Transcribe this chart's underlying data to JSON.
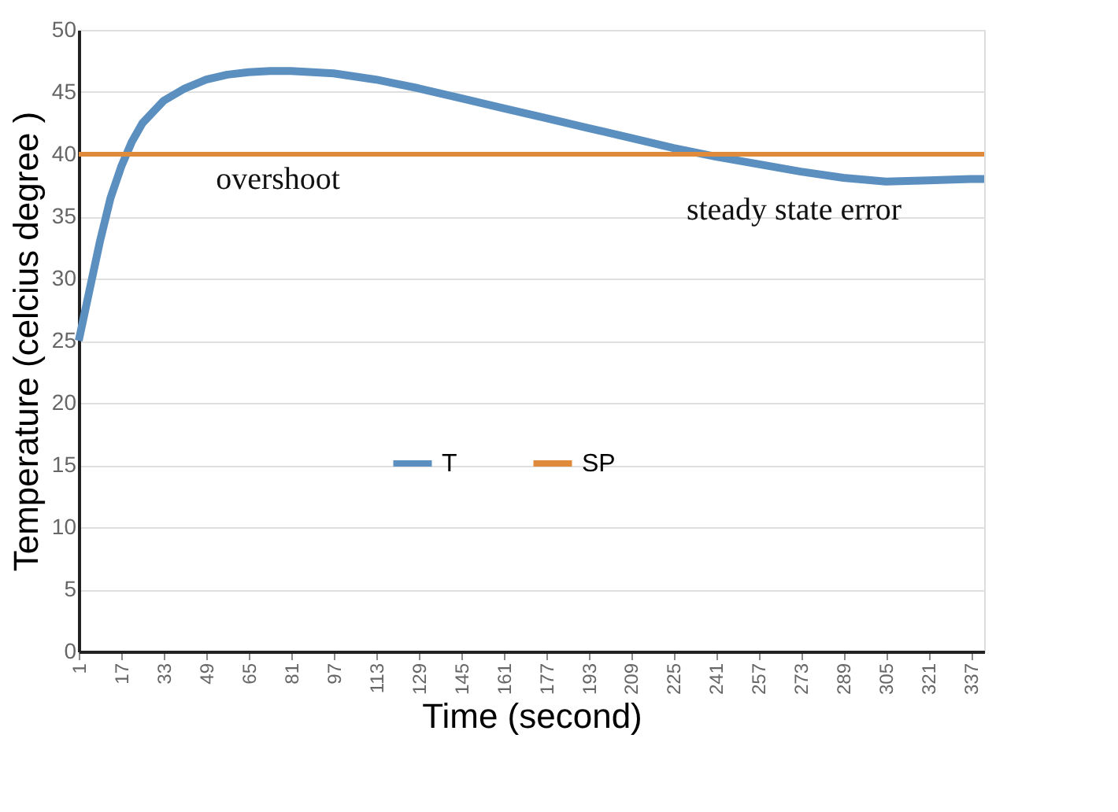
{
  "chart_data": {
    "type": "line",
    "xlabel": "Time (second)",
    "ylabel": "Temperature (celcius degree )",
    "xlim": [
      1,
      342
    ],
    "xticks": [
      1,
      17,
      33,
      49,
      65,
      81,
      97,
      113,
      129,
      145,
      161,
      177,
      193,
      209,
      225,
      241,
      257,
      273,
      289,
      305,
      321,
      337
    ],
    "ylim": [
      0,
      50
    ],
    "yticks": [
      0,
      5,
      10,
      15,
      20,
      25,
      30,
      35,
      40,
      45,
      50
    ],
    "grid": "y",
    "legend": "bottom",
    "marker": "none",
    "line_style": "solid",
    "series": [
      {
        "name": "T",
        "color": "#5b8fc0",
        "x": [
          1,
          5,
          9,
          13,
          17,
          21,
          25,
          33,
          41,
          49,
          57,
          65,
          73,
          81,
          97,
          113,
          129,
          145,
          161,
          177,
          193,
          209,
          225,
          241,
          257,
          273,
          289,
          305,
          321,
          337,
          342
        ],
        "values": [
          25,
          29,
          33,
          36.5,
          39,
          41,
          42.5,
          44.3,
          45.3,
          46,
          46.4,
          46.6,
          46.7,
          46.7,
          46.5,
          46,
          45.3,
          44.5,
          43.7,
          42.9,
          42.1,
          41.3,
          40.5,
          39.8,
          39.2,
          38.6,
          38.1,
          37.8,
          37.9,
          38,
          38
        ]
      },
      {
        "name": "SP",
        "color": "#e08a3c",
        "x": [
          1,
          342
        ],
        "values": [
          40,
          40
        ]
      }
    ],
    "annotations": [
      "overshoot",
      "steady state error"
    ]
  }
}
